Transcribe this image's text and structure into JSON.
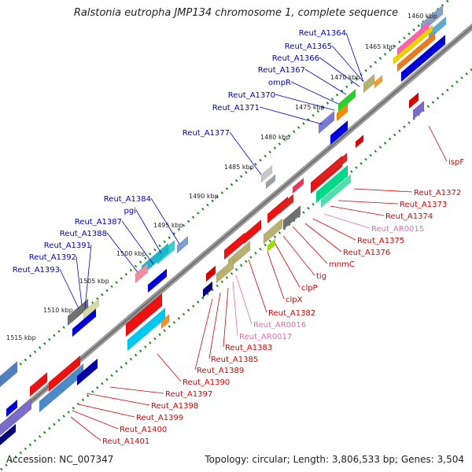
{
  "title": "Ralstonia eutropha JMP134 chromosome 1, complete sequence",
  "footer": {
    "accession": "Accession: NC_007347",
    "topology": "Topology: circular; Length: 3,806,533 bp; Genes: 3,504"
  },
  "colors": {
    "backbone": "#808080",
    "tick_dots": "#1e8c1e",
    "forward_label": "#0000cc",
    "reverse_label": "#dd0000",
    "rna_label": "#e36bb4"
  },
  "ticks": [
    "1460 kbp",
    "1465 kbp",
    "1470 kbp",
    "1475 kbp",
    "1480 kbp",
    "1485 kbp",
    "1490 kbp",
    "1495 kbp",
    "1500 kbp",
    "1505 kbp",
    "1510 kbp",
    "1515 kbp"
  ],
  "forward_genes": [
    "Reut_A1364",
    "Reut_A1365",
    "Reut_A1366",
    "Reut_A1367",
    "ompR",
    "Reut_A1370",
    "Reut_A1371",
    "Reut_A1377",
    "Reut_A1384",
    "pgi",
    "Reut_A1387",
    "Reut_A1388",
    "Reut_A1391",
    "Reut_A1392",
    "Reut_A1393"
  ],
  "reverse_genes": [
    "ispF",
    "Reut_A1372",
    "Reut_A1373",
    "Reut_A1374",
    "Reut_AR0015",
    "Reut_A1375",
    "Reut_A1376",
    "mnmC",
    "tig",
    "clpP",
    "clpX",
    "Reut_A1382",
    "Reut_AR0016",
    "Reut_AR0017",
    "Reut_A1383",
    "Reut_A1385",
    "Reut_A1389",
    "Reut_A1390",
    "Reut_A1397",
    "Reut_A1398",
    "Reut_A1399",
    "Reut_A1400",
    "Reut_A1401"
  ]
}
